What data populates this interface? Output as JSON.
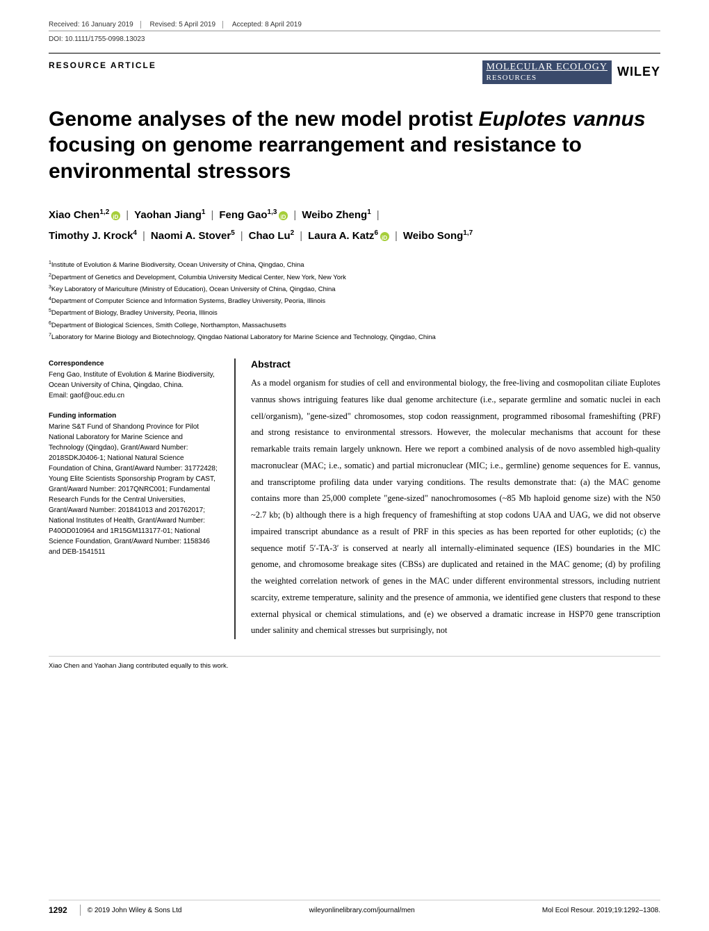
{
  "meta": {
    "received": "Received: 16 January 2019",
    "revised": "Revised: 5 April 2019",
    "accepted": "Accepted: 8 April 2019",
    "doi": "DOI: 10.1111/1755-0998.13023",
    "article_type": "RESOURCE ARTICLE",
    "journal_line1": "MOLECULAR ECOLOGY",
    "journal_line2": "RESOURCES",
    "publisher": "WILEY"
  },
  "title_parts": {
    "p1": "Genome analyses of the new model protist ",
    "italic": "Euplotes vannus",
    "p2": " focusing on genome rearrangement and resistance to environmental stressors"
  },
  "authors": [
    {
      "name": "Xiao Chen",
      "sup": "1,2",
      "orcid": true
    },
    {
      "name": "Yaohan Jiang",
      "sup": "1",
      "orcid": false
    },
    {
      "name": "Feng Gao",
      "sup": "1,3",
      "orcid": true
    },
    {
      "name": "Weibo Zheng",
      "sup": "1",
      "orcid": false
    },
    {
      "name": "Timothy J. Krock",
      "sup": "4",
      "orcid": false
    },
    {
      "name": "Naomi A. Stover",
      "sup": "5",
      "orcid": false
    },
    {
      "name": "Chao Lu",
      "sup": "2",
      "orcid": false
    },
    {
      "name": "Laura A. Katz",
      "sup": "6",
      "orcid": true
    },
    {
      "name": "Weibo Song",
      "sup": "1,7",
      "orcid": false
    }
  ],
  "affiliations": [
    {
      "n": "1",
      "text": "Institute of Evolution & Marine Biodiversity, Ocean University of China, Qingdao, China"
    },
    {
      "n": "2",
      "text": "Department of Genetics and Development, Columbia University Medical Center, New York, New York"
    },
    {
      "n": "3",
      "text": "Key Laboratory of Mariculture (Ministry of Education), Ocean University of China, Qingdao, China"
    },
    {
      "n": "4",
      "text": "Department of Computer Science and Information Systems, Bradley University, Peoria, Illinois"
    },
    {
      "n": "5",
      "text": "Department of Biology, Bradley University, Peoria, Illinois"
    },
    {
      "n": "6",
      "text": "Department of Biological Sciences, Smith College, Northampton, Massachusetts"
    },
    {
      "n": "7",
      "text": "Laboratory for Marine Biology and Biotechnology, Qingdao National Laboratory for Marine Science and Technology, Qingdao, China"
    }
  ],
  "correspondence": {
    "head": "Correspondence",
    "body": "Feng Gao, Institute of Evolution & Marine Biodiversity, Ocean University of China, Qingdao, China.",
    "email": "Email: gaof@ouc.edu.cn"
  },
  "funding": {
    "head": "Funding information",
    "body": "Marine S&T Fund of Shandong Province for Pilot National Laboratory for Marine Science and Technology (Qingdao), Grant/Award Number: 2018SDKJ0406-1; National Natural Science Foundation of China, Grant/Award Number: 31772428; Young Elite Scientists Sponsorship Program by CAST, Grant/Award Number: 2017QNRC001; Fundamental Research Funds for the Central Universities, Grant/Award Number: 201841013 and 201762017; National Institutes of Health, Grant/Award Number: P40OD010964 and 1R15GM113177-01; National Science Foundation, Grant/Award Number: 1158346 and DEB-1541511"
  },
  "abstract": {
    "head": "Abstract",
    "body": "As a model organism for studies of cell and environmental biology, the free-living and cosmopolitan ciliate Euplotes vannus shows intriguing features like dual genome architecture (i.e., separate germline and somatic nuclei in each cell/organism), \"gene-sized\" chromosomes, stop codon reassignment, programmed ribosomal frameshifting (PRF) and strong resistance to environmental stressors. However, the molecular mechanisms that account for these remarkable traits remain largely unknown. Here we report a combined analysis of de novo assembled high-quality macronuclear (MAC; i.e., somatic) and partial micronuclear (MIC; i.e., germline) genome sequences for E. vannus, and transcriptome profiling data under varying conditions. The results demonstrate that: (a) the MAC genome contains more than 25,000 complete \"gene-sized\" nanochromosomes (~85 Mb haploid genome size) with the N50 ~2.7 kb; (b) although there is a high frequency of frameshifting at stop codons UAA and UAG, we did not observe impaired transcript abundance as a result of PRF in this species as has been reported for other euplotids; (c) the sequence motif 5′-TA-3′ is conserved at nearly all internally-eliminated sequence (IES) boundaries in the MIC genome, and chromosome breakage sites (CBSs) are duplicated and retained in the MAC genome; (d) by profiling the weighted correlation network of genes in the MAC under different environmental stressors, including nutrient scarcity, extreme temperature, salinity and the presence of ammonia, we identified gene clusters that respond to these external physical or chemical stimulations, and (e) we observed a dramatic increase in HSP70 gene transcription under salinity and chemical stresses but surprisingly, not"
  },
  "footnote": "Xiao Chen and Yaohan Jiang contributed equally to this work.",
  "footer": {
    "page": "1292",
    "copyright": "© 2019 John Wiley & Sons Ltd",
    "url": "wileyonlinelibrary.com/journal/men",
    "citation": "Mol Ecol Resour. 2019;19:1292–1308."
  },
  "colors": {
    "journal_bg": "#3a4a6b",
    "orcid_bg": "#a6ce39",
    "rule": "#999999"
  }
}
